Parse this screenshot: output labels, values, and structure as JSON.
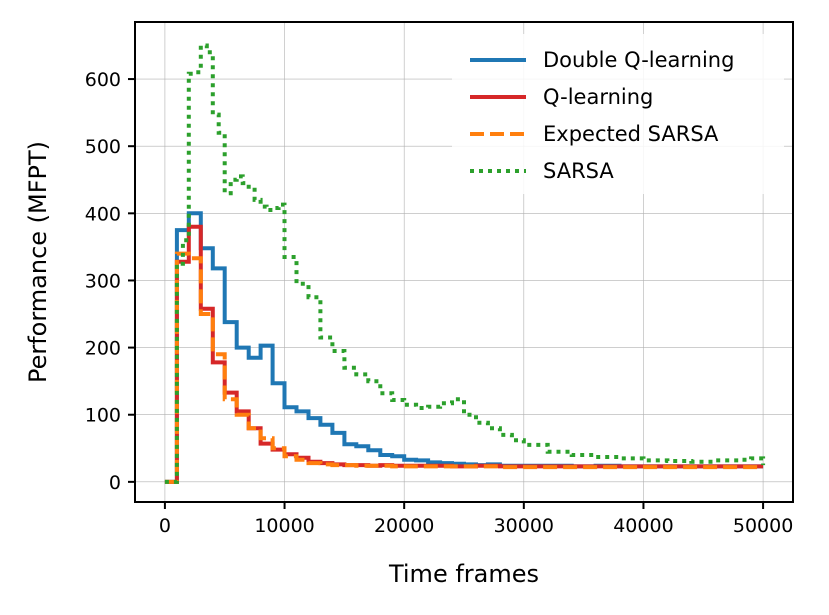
{
  "chart_data": {
    "type": "line",
    "title": "",
    "xlabel": "Time frames",
    "ylabel": "Performance (MFPT)",
    "xlim": [
      -2500,
      52500
    ],
    "ylim": [
      -30,
      685
    ],
    "xticks": [
      0,
      10000,
      20000,
      30000,
      40000,
      50000
    ],
    "yticks": [
      0,
      100,
      200,
      300,
      400,
      500,
      600
    ],
    "grid": true,
    "legend_position": "top-right",
    "step": true,
    "series": [
      {
        "name": "Double Q-learning",
        "color": "#1f77b4",
        "style": "solid",
        "x": [
          0,
          1000,
          2000,
          3000,
          4000,
          5000,
          6000,
          7000,
          8000,
          9000,
          10000,
          11000,
          12000,
          13000,
          14000,
          15000,
          16000,
          17000,
          18000,
          19000,
          20000,
          21000,
          22000,
          23000,
          24000,
          25000,
          26000,
          27000,
          28000,
          29000,
          30000,
          32000,
          34000,
          36000,
          38000,
          40000,
          42000,
          44000,
          46000,
          48000,
          50000
        ],
        "y": [
          0,
          375,
          400,
          348,
          318,
          238,
          200,
          185,
          203,
          147,
          111,
          105,
          95,
          85,
          73,
          56,
          53,
          47,
          40,
          38,
          33,
          32,
          29,
          28,
          27,
          26,
          25,
          26,
          24,
          24,
          24,
          24,
          23,
          24,
          23,
          23,
          23,
          23,
          23,
          23,
          23
        ]
      },
      {
        "name": "Q-learning",
        "color": "#d62728",
        "style": "solid",
        "x": [
          0,
          1000,
          2000,
          3000,
          4000,
          5000,
          6000,
          7000,
          8000,
          9000,
          10000,
          11000,
          12000,
          13000,
          14000,
          15000,
          16000,
          17000,
          18000,
          19000,
          20000,
          22000,
          24000,
          26000,
          28000,
          30000,
          32000,
          34000,
          36000,
          38000,
          40000,
          42000,
          44000,
          46000,
          48000,
          50000
        ],
        "y": [
          0,
          328,
          380,
          258,
          178,
          133,
          105,
          80,
          57,
          48,
          41,
          36,
          30,
          28,
          26,
          25,
          25,
          24,
          25,
          24,
          24,
          24,
          23,
          24,
          23,
          23,
          23,
          23,
          23,
          23,
          23,
          23,
          23,
          23,
          23,
          23
        ]
      },
      {
        "name": "Expected SARSA",
        "color": "#ff7f0e",
        "style": "dashed",
        "x": [
          0,
          1000,
          2000,
          3000,
          4000,
          5000,
          6000,
          7000,
          8000,
          9000,
          10000,
          11000,
          12000,
          13000,
          14000,
          15000,
          16000,
          17000,
          18000,
          19000,
          20000,
          22000,
          24000,
          26000,
          28000,
          30000,
          32000,
          34000,
          36000,
          38000,
          40000,
          42000,
          44000,
          46000,
          48000,
          50000
        ],
        "y": [
          0,
          340,
          333,
          250,
          190,
          123,
          100,
          80,
          65,
          50,
          38,
          33,
          28,
          26,
          25,
          25,
          24,
          24,
          24,
          23,
          23,
          23,
          23,
          23,
          22,
          22,
          22,
          22,
          22,
          22,
          22,
          22,
          22,
          22,
          22,
          22
        ]
      },
      {
        "name": "SARSA",
        "color": "#2ca02c",
        "style": "dotted",
        "x": [
          0,
          1000,
          1500,
          2000,
          2500,
          3000,
          3500,
          4000,
          4500,
          5000,
          5500,
          6000,
          6500,
          7000,
          7500,
          8000,
          8500,
          9000,
          9500,
          10000,
          11000,
          12000,
          13000,
          14000,
          15000,
          16000,
          17000,
          18000,
          19000,
          20000,
          21000,
          22000,
          23000,
          24000,
          25000,
          26000,
          27000,
          28000,
          29000,
          30000,
          32000,
          34000,
          36000,
          38000,
          40000,
          42000,
          44000,
          46000,
          48000,
          49000,
          50000
        ],
        "y": [
          0,
          325,
          360,
          608,
          610,
          650,
          640,
          547,
          520,
          430,
          450,
          455,
          445,
          435,
          420,
          410,
          405,
          408,
          413,
          335,
          295,
          275,
          215,
          195,
          170,
          160,
          150,
          132,
          122,
          115,
          110,
          112,
          117,
          123,
          100,
          88,
          80,
          70,
          62,
          55,
          45,
          40,
          37,
          35,
          32,
          31,
          30,
          32,
          33,
          35,
          25
        ]
      }
    ]
  }
}
